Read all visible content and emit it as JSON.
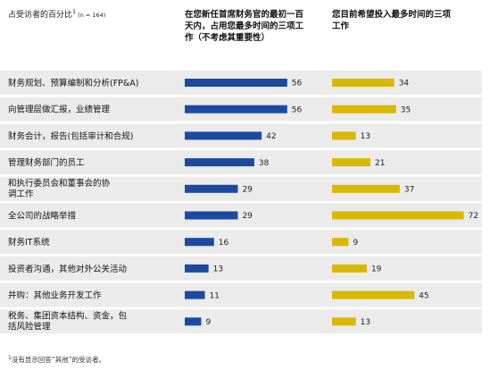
{
  "header": {
    "unit_label": "占受访者的百分比",
    "unit_sup": "1",
    "unit_n": "(n = 164)",
    "col1_title": [
      "在您新任首席财务官的最初一百",
      "天内，占用您最多时间的三项工",
      "作（不考虑其重要性）"
    ],
    "col2_title": [
      "您目前希望投入最多时间的三项",
      "工作"
    ]
  },
  "footnote": {
    "sup": "1",
    "text": "没有显示回答“其他”的受访者。"
  },
  "colors": {
    "series1": "#1c4aa0",
    "series2": "#d8b800",
    "band": "#ebebeb"
  },
  "chart_data": {
    "type": "bar",
    "orientation": "horizontal",
    "categories": [
      [
        "财务规划、预算编制和分析(FP&A)"
      ],
      [
        "向管理层做汇报，业绩管理"
      ],
      [
        "财务会计，报告(包括审计和合规)"
      ],
      [
        "管理财务部门的员工"
      ],
      [
        "和执行委员会和董事会的协",
        "调工作"
      ],
      [
        "全公司的战略举措"
      ],
      [
        "财务IT系统"
      ],
      [
        "投资者沟通，其他对外公关活动"
      ],
      [
        "并购：其他业务开发工作"
      ],
      [
        "税务、集团资本结构、资金，包",
        "括风险管理"
      ]
    ],
    "series": [
      {
        "values": [
          56,
          56,
          42,
          38,
          29,
          29,
          16,
          13,
          11,
          9
        ]
      },
      {
        "values": [
          34,
          35,
          13,
          21,
          37,
          72,
          9,
          19,
          45,
          13
        ]
      }
    ],
    "xlim": [
      0,
      75
    ]
  }
}
